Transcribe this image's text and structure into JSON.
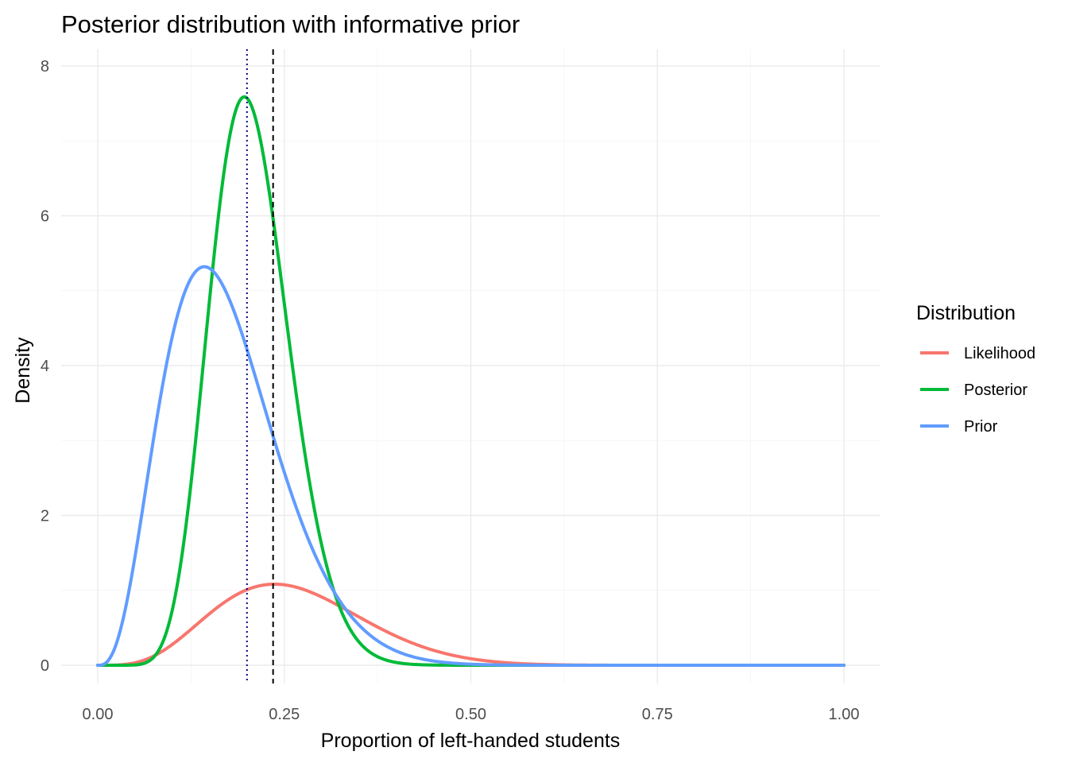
{
  "chart_data": {
    "type": "line",
    "title": "Posterior distribution with informative prior",
    "xlabel": "Proportion of left-handed students",
    "ylabel": "Density",
    "xlim": [
      0,
      1
    ],
    "ylim": [
      0,
      8
    ],
    "xticks": [
      "0.00",
      "0.25",
      "0.50",
      "0.75",
      "1.00"
    ],
    "yticks": [
      "0",
      "2",
      "4",
      "6",
      "8"
    ],
    "grid": true,
    "legend": {
      "title": "Distribution",
      "position": "right",
      "entries": [
        "Likelihood",
        "Posterior",
        "Prior"
      ]
    },
    "series": [
      {
        "name": "Likelihood",
        "color": "#F8766D",
        "dist": "beta",
        "alpha": 5.1,
        "beta": 14.2,
        "scale": 0.268
      },
      {
        "name": "Posterior",
        "color": "#00BA38",
        "dist": "beta",
        "alpha": 12,
        "beta": 46,
        "scale": 1
      },
      {
        "name": "Prior",
        "color": "#619CFF",
        "dist": "beta",
        "alpha": 4,
        "beta": 19,
        "scale": 1
      }
    ],
    "reference_lines": [
      {
        "x": 0.2,
        "style": "dotted",
        "color": "#00007f"
      },
      {
        "x": 0.235,
        "style": "dashed",
        "color": "#000000"
      }
    ]
  }
}
